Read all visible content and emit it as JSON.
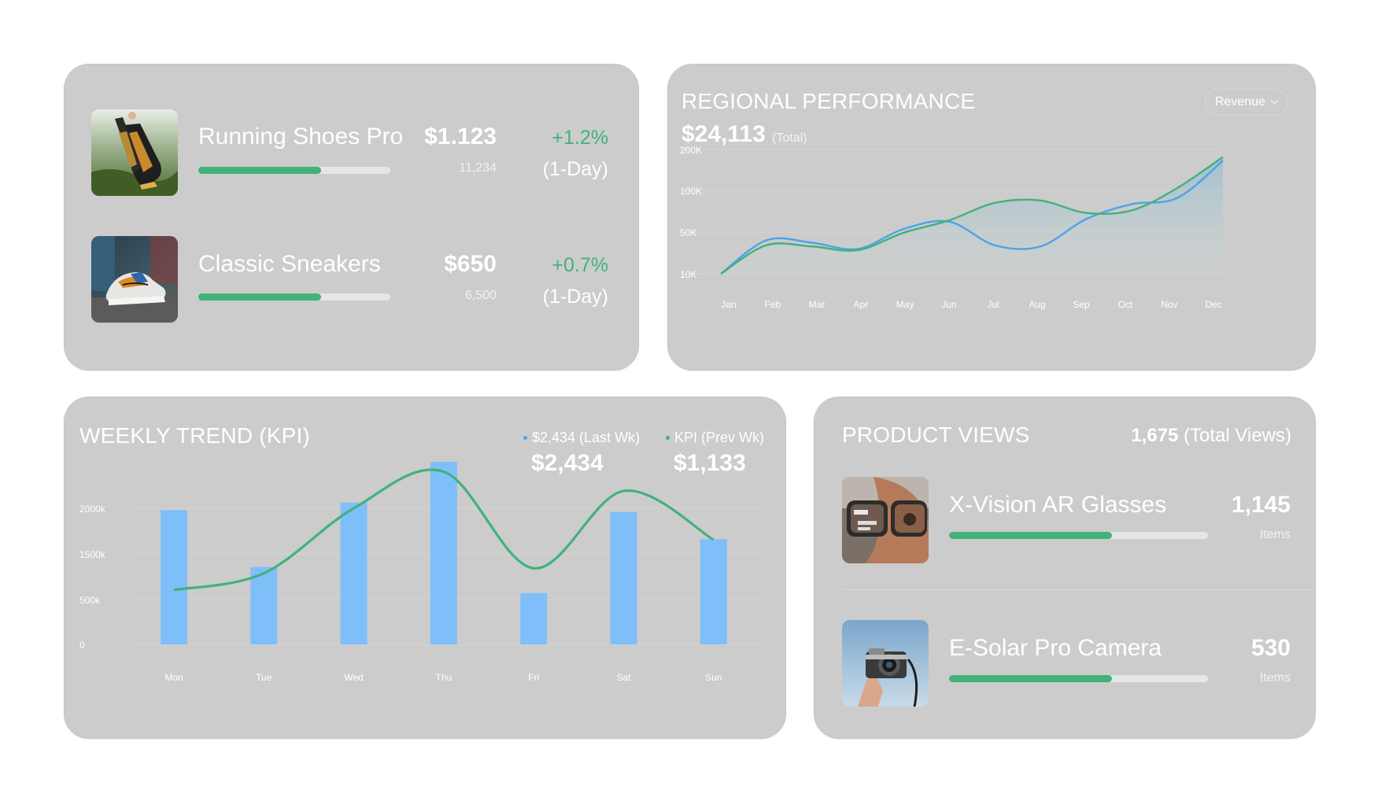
{
  "products": {
    "items": [
      {
        "name": "Running Shoes Pro",
        "price": "$1.123",
        "units": "11,234",
        "change": "+1.2%",
        "period": "(1-Day)",
        "progress": 0.64
      },
      {
        "name": "Classic Sneakers",
        "price": "$650",
        "units": "6,500",
        "change": "+0.7%",
        "period": "(1-Day)",
        "progress": 0.64
      }
    ]
  },
  "regional": {
    "title": "REGIONAL PERFORMANCE",
    "total": "$24,113",
    "total_note": "(Total)",
    "dropdown": "Revenue"
  },
  "weekly": {
    "title": "WEEKLY TREND (KPI)",
    "legend": [
      {
        "label": "$2,434 (Last Wk)",
        "value": "$2,434",
        "color": "#4da3e8"
      },
      {
        "label": "KPI (Prev Wk)",
        "value": "$1,133",
        "color": "#41b27b"
      }
    ]
  },
  "views": {
    "title": "PRODUCT VIEWS",
    "total": "1,675",
    "total_note": "(Total Views)",
    "items": [
      {
        "name": "X-Vision AR Glasses",
        "count": "1,145",
        "unit": "Items",
        "progress": 0.63
      },
      {
        "name": "E-Solar Pro Camera",
        "count": "530",
        "unit": "Items",
        "progress": 0.63
      }
    ]
  },
  "chart_data": [
    {
      "type": "line",
      "title": "REGIONAL PERFORMANCE",
      "categories": [
        "Jan",
        "Feb",
        "Mar",
        "Apr",
        "May",
        "Jun",
        "Jul",
        "Aug",
        "Sep",
        "Oct",
        "Nov",
        "Dec"
      ],
      "y_ticks": [
        "200K",
        "100K",
        "50K",
        "10K"
      ],
      "series": [
        {
          "color": "#4da3e8",
          "values": [
            0,
            0.27,
            0.25,
            0.2,
            0.36,
            0.42,
            0.23,
            0.22,
            0.44,
            0.56,
            0.61,
            0.91
          ]
        },
        {
          "color": "#41b27b",
          "values": [
            0,
            0.23,
            0.22,
            0.19,
            0.33,
            0.43,
            0.57,
            0.59,
            0.49,
            0.51,
            0.69,
            0.94
          ]
        }
      ],
      "grid": true,
      "legend": "none"
    },
    {
      "type": "bar",
      "title": "WEEKLY TREND (KPI)",
      "categories": [
        "Mon",
        "Tue",
        "Wed",
        "Thu",
        "Fri",
        "Sat",
        "Sun"
      ],
      "y_ticks": [
        "2000k",
        "1500k",
        "500k",
        "0"
      ],
      "bar_color": "#7fbff9",
      "bars": [
        2170,
        1250,
        2290,
        2950,
        830,
        2140,
        1700
      ],
      "line": {
        "color": "#41b27b",
        "values": [
          880,
          1150,
          2200,
          2790,
          1230,
          2480,
          1690
        ]
      },
      "ylim": [
        0,
        3000
      ],
      "grid": true,
      "legend": "top-right"
    }
  ]
}
